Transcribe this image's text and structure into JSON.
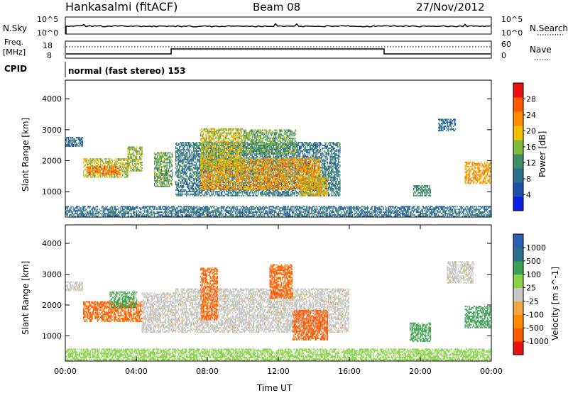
{
  "header": {
    "station": "Hankasalmi (fitACF)",
    "beam": "Beam 08",
    "date": "27/Nov/2012"
  },
  "noise_panel": {
    "left_label": "N.Sky",
    "right_label": "N.Search",
    "y_ticks": [
      "10^5",
      "10^0"
    ]
  },
  "freq_panel": {
    "left_label_1": "Freq.",
    "left_label_2": "[MHz]",
    "left_ticks": [
      "18",
      "8"
    ],
    "right_label": "Nave",
    "right_ticks": [
      "60",
      "0"
    ]
  },
  "cpid": {
    "label": "CPID",
    "text": "normal (fast stereo) 153"
  },
  "colors": {
    "power": [
      "#0a1ee6",
      "#1f4fa8",
      "#2a6e8c",
      "#3f8f66",
      "#7fb83a",
      "#f0c000",
      "#ff8a00",
      "#ff5a00",
      "#e81010"
    ],
    "velocity": [
      "#e81010",
      "#ff5a00",
      "#ff8a00",
      "#f2a640",
      "#c6c6c6",
      "#8ad14a",
      "#3f9f55",
      "#2a6e8c",
      "#2b5fb5"
    ]
  },
  "chart_data": [
    {
      "type": "heatmap",
      "quantity": "Power",
      "ylabel": "Slant Range [km]",
      "xlabel": "",
      "y_ticks": [
        "4000",
        "3000",
        "2000",
        "1000"
      ],
      "x_range": [
        0,
        24
      ],
      "y_range": [
        180,
        4600
      ],
      "colorbar": {
        "label": "Power [dB]",
        "ticks": [
          "28",
          "24",
          "20",
          "16",
          "12",
          "8",
          "4"
        ],
        "range": [
          0,
          32
        ]
      },
      "regions": [
        {
          "t0": 0.0,
          "t1": 1.0,
          "r0": 2450,
          "r1": 2750,
          "level": 8
        },
        {
          "t0": 1.0,
          "t1": 3.5,
          "r0": 1450,
          "r1": 2050,
          "level": 18
        },
        {
          "t0": 1.2,
          "t1": 3.0,
          "r0": 1550,
          "r1": 1800,
          "level": 25
        },
        {
          "t0": 3.5,
          "t1": 4.3,
          "r0": 1650,
          "r1": 2450,
          "level": 16
        },
        {
          "t0": 5.0,
          "t1": 6.0,
          "r0": 1150,
          "r1": 2250,
          "level": 14
        },
        {
          "t0": 6.2,
          "t1": 15.5,
          "r0": 850,
          "r1": 2600,
          "level": 10
        },
        {
          "t0": 7.6,
          "t1": 14.4,
          "r0": 1050,
          "r1": 2050,
          "level": 22
        },
        {
          "t0": 7.6,
          "t1": 10.0,
          "r0": 1700,
          "r1": 3050,
          "level": 18
        },
        {
          "t0": 10.0,
          "t1": 13.0,
          "r0": 2200,
          "r1": 3000,
          "level": 14
        },
        {
          "t0": 13.2,
          "t1": 14.8,
          "r0": 850,
          "r1": 1450,
          "level": 20
        },
        {
          "t0": 19.6,
          "t1": 20.6,
          "r0": 850,
          "r1": 1200,
          "level": 12
        },
        {
          "t0": 21.0,
          "t1": 22.0,
          "r0": 2950,
          "r1": 3350,
          "level": 8
        },
        {
          "t0": 22.5,
          "t1": 24.0,
          "r0": 1250,
          "r1": 1950,
          "level": 22
        },
        {
          "t0": 0.0,
          "t1": 24.0,
          "r0": 180,
          "r1": 500,
          "level": 9
        }
      ]
    },
    {
      "type": "heatmap",
      "quantity": "Velocity",
      "ylabel": "Slant Range [km]",
      "xlabel": "Time UT",
      "x_ticks": [
        "00:00",
        "04:00",
        "08:00",
        "12:00",
        "16:00",
        "20:00",
        "00:00"
      ],
      "y_ticks": [
        "4000",
        "3000",
        "2000",
        "1000"
      ],
      "x_range": [
        0,
        24
      ],
      "y_range": [
        180,
        4600
      ],
      "colorbar": {
        "label": "Velocity [m s^-1]",
        "ticks": [
          "1000",
          "500",
          "100",
          "25",
          "-25",
          "-100",
          "-500",
          "-1000"
        ]
      },
      "regions": [
        {
          "t0": 0.0,
          "t1": 1.0,
          "r0": 2450,
          "r1": 2750,
          "v": 0
        },
        {
          "t0": 1.0,
          "t1": 4.3,
          "r0": 1450,
          "r1": 2100,
          "v": -200
        },
        {
          "t0": 2.5,
          "t1": 4.0,
          "r0": 1900,
          "r1": 2400,
          "v": 150
        },
        {
          "t0": 4.3,
          "t1": 6.2,
          "r0": 1100,
          "r1": 2400,
          "v": 0
        },
        {
          "t0": 6.2,
          "t1": 16.0,
          "r0": 1100,
          "r1": 2500,
          "v": 0
        },
        {
          "t0": 7.6,
          "t1": 8.6,
          "r0": 1500,
          "r1": 3200,
          "v": -200
        },
        {
          "t0": 11.5,
          "t1": 12.8,
          "r0": 2200,
          "r1": 3300,
          "v": -200
        },
        {
          "t0": 12.8,
          "t1": 14.8,
          "r0": 850,
          "r1": 1800,
          "v": -300
        },
        {
          "t0": 19.4,
          "t1": 20.6,
          "r0": 800,
          "r1": 1400,
          "v": 150
        },
        {
          "t0": 21.5,
          "t1": 23.0,
          "r0": 2700,
          "r1": 3400,
          "v": 0
        },
        {
          "t0": 22.5,
          "t1": 24.0,
          "r0": 1250,
          "r1": 1950,
          "v": 200
        },
        {
          "t0": 0.0,
          "t1": 24.0,
          "r0": 180,
          "r1": 550,
          "v": 50
        }
      ]
    }
  ]
}
